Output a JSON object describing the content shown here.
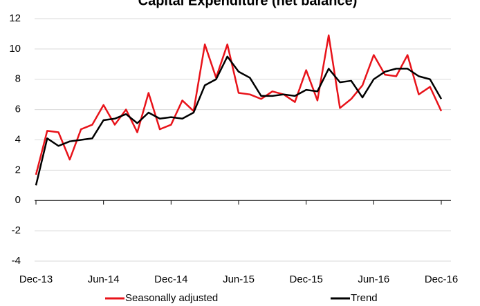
{
  "chart_data": {
    "type": "line",
    "title": "Capital Expenditure (net balance)",
    "categories": [
      "Dec-13",
      null,
      null,
      null,
      null,
      null,
      "Jun-14",
      null,
      null,
      null,
      null,
      null,
      "Dec-14",
      null,
      null,
      null,
      null,
      null,
      "Jun-15",
      null,
      null,
      null,
      null,
      null,
      "Dec-15",
      null,
      null,
      null,
      null,
      null,
      "Jun-16",
      null,
      null,
      null,
      null,
      null,
      "Dec-16"
    ],
    "series": [
      {
        "name": "Seasonally adjusted",
        "color": "#e8131a",
        "values": [
          1.7,
          4.6,
          4.5,
          2.7,
          4.7,
          5.0,
          6.3,
          5.0,
          6.0,
          4.5,
          7.1,
          4.7,
          5.0,
          6.6,
          5.9,
          10.3,
          8.1,
          10.3,
          7.1,
          7.0,
          6.7,
          7.2,
          7.0,
          6.5,
          8.6,
          6.6,
          10.9,
          6.1,
          6.7,
          7.6,
          9.6,
          8.3,
          8.2,
          9.6,
          7.0,
          7.5,
          5.9
        ]
      },
      {
        "name": "Trend",
        "color": "#000000",
        "values": [
          1.0,
          4.1,
          3.6,
          3.9,
          4.0,
          4.1,
          5.3,
          5.4,
          5.7,
          5.1,
          5.8,
          5.4,
          5.5,
          5.4,
          5.8,
          7.6,
          8.0,
          9.5,
          8.5,
          8.1,
          6.9,
          6.9,
          7.0,
          6.9,
          7.3,
          7.2,
          8.7,
          7.8,
          7.9,
          6.8,
          8.0,
          8.5,
          8.7,
          8.7,
          8.2,
          8.0,
          6.7
        ]
      }
    ],
    "ylim": [
      -4,
      12
    ],
    "yticks": [
      -4,
      -2,
      0,
      2,
      4,
      6,
      8,
      10,
      12
    ],
    "grid": true,
    "legend": "bottom"
  }
}
